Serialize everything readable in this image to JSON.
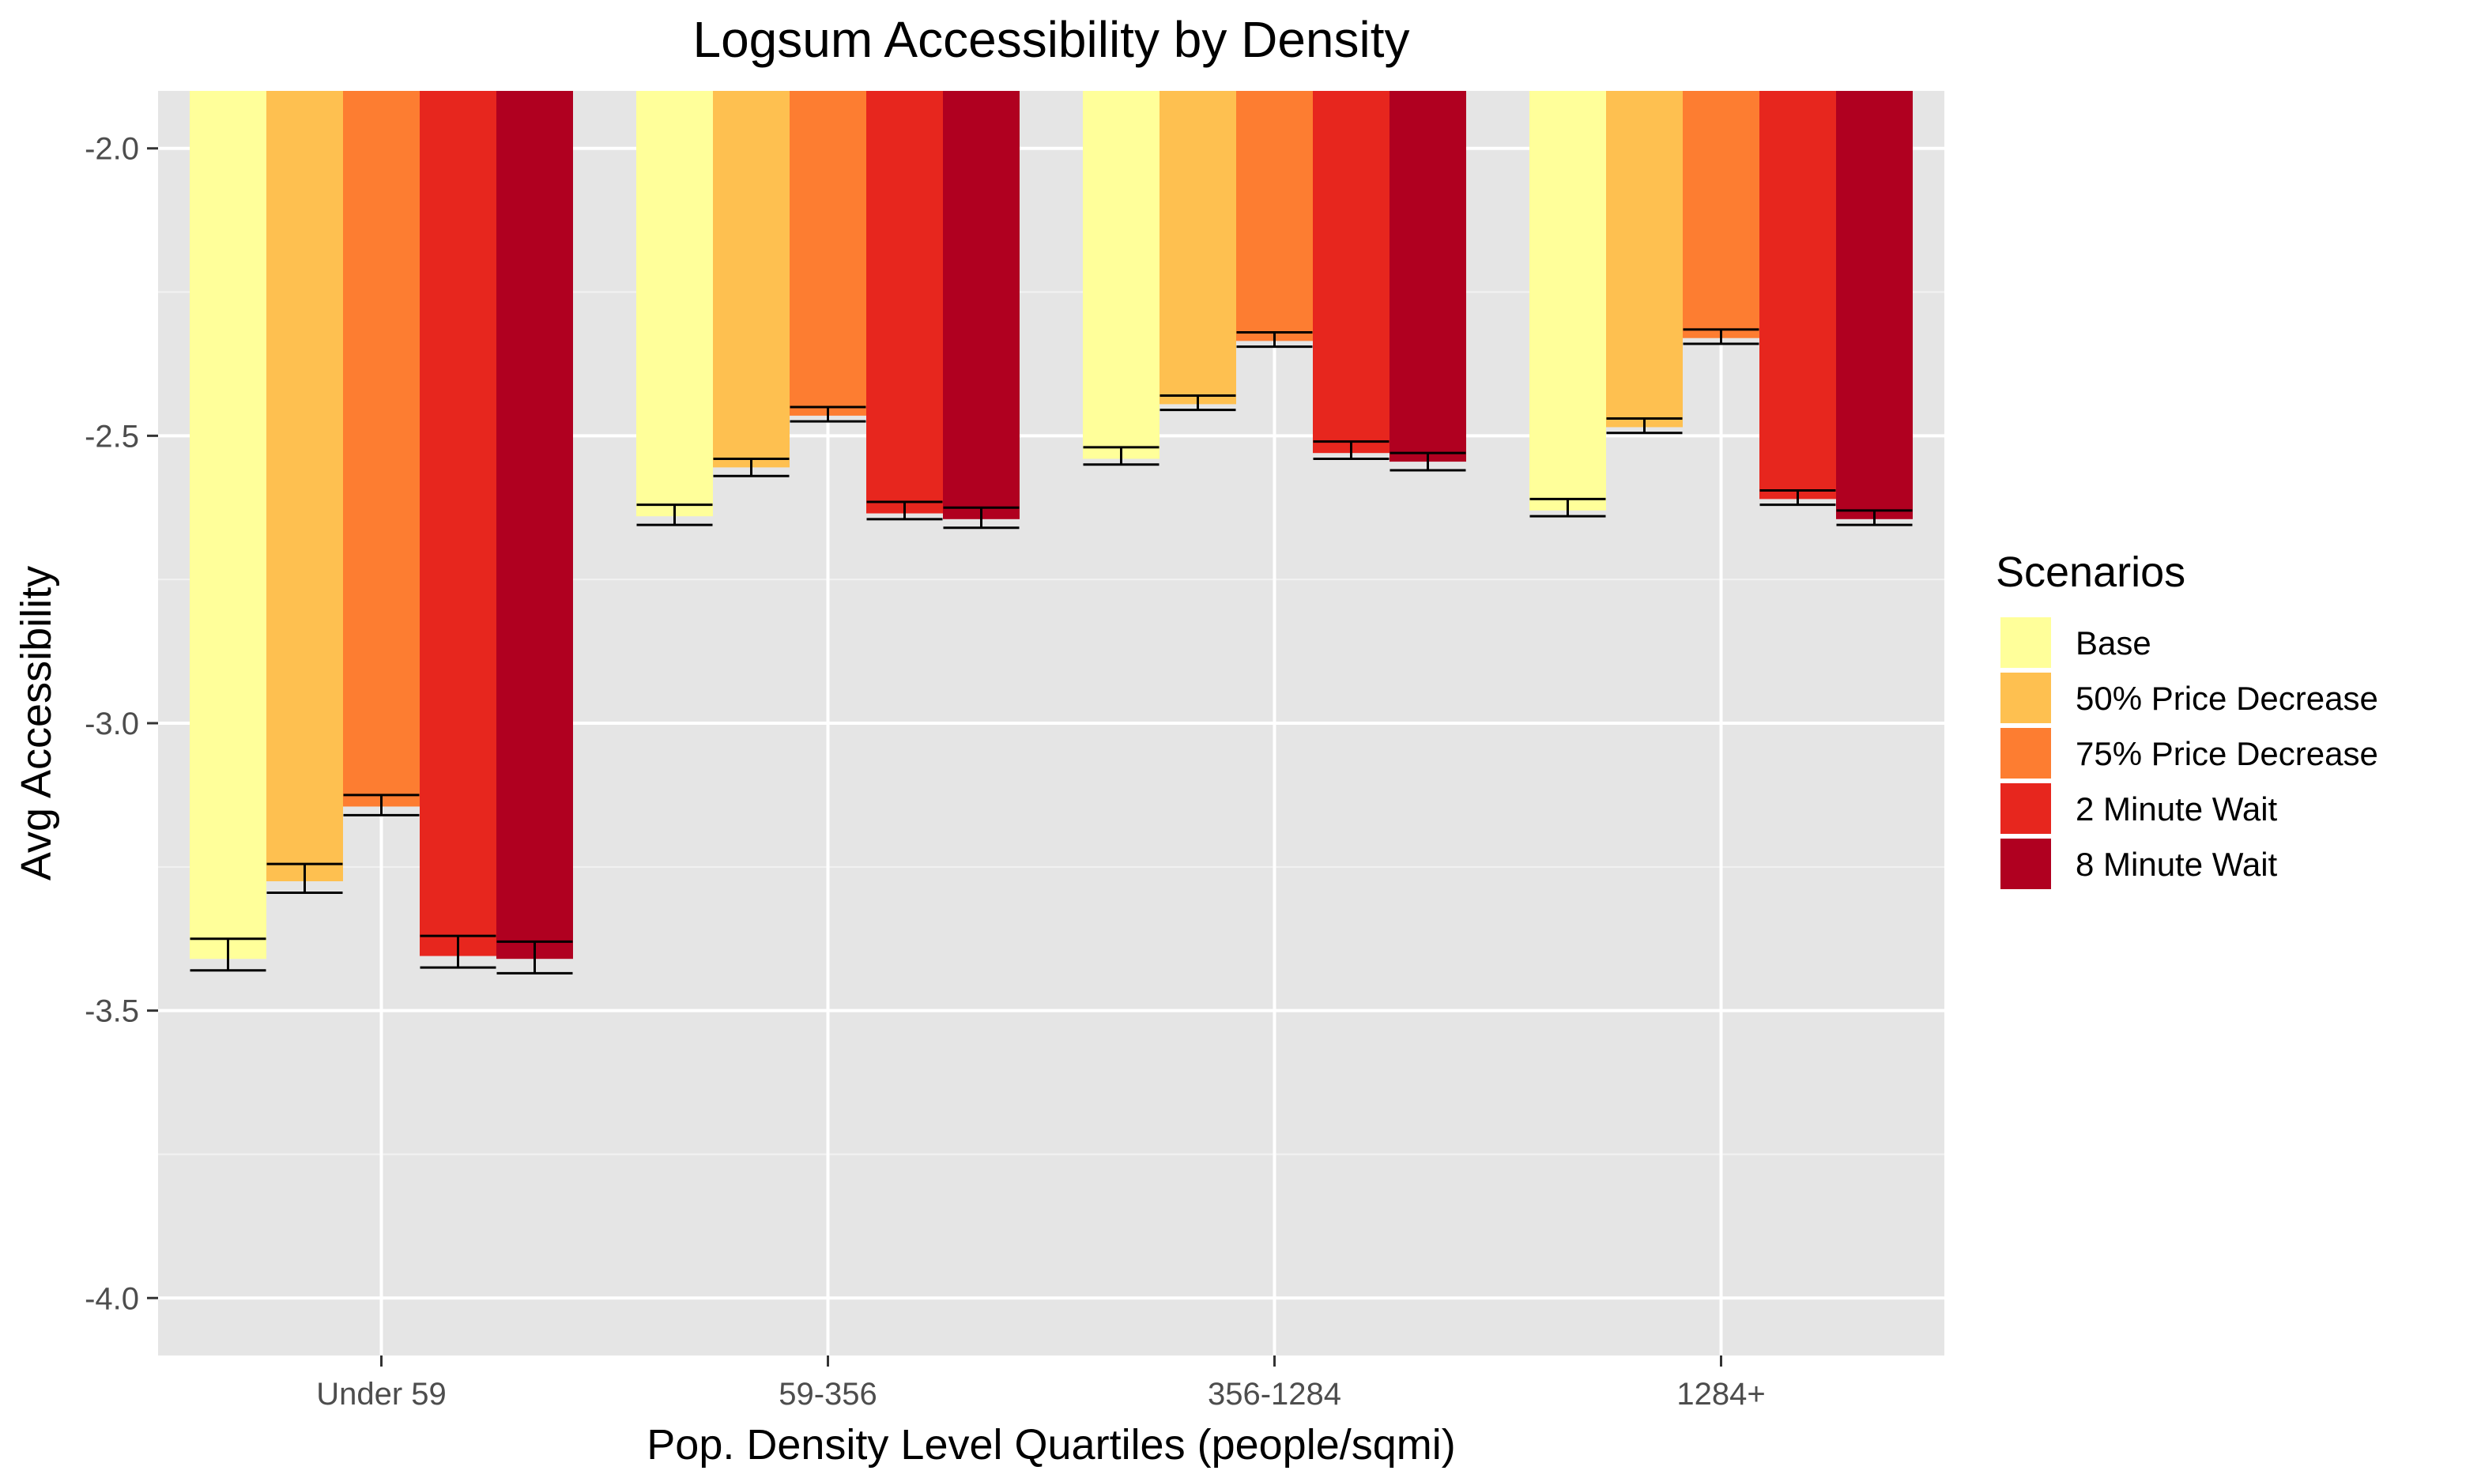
{
  "chart_data": {
    "type": "bar",
    "title": "Logsum Accessibility by Density",
    "xlabel": "Pop. Density Level Quartiles (people/sqmi)",
    "ylabel": "Avg Accessibility",
    "ylim": [
      -4.1,
      -1.9
    ],
    "yticks": [
      -2.0,
      -2.5,
      -3.0,
      -3.5,
      -4.0
    ],
    "ytick_labels": [
      "-2.0",
      "-2.5",
      "-3.0",
      "-3.5",
      "-4.0"
    ],
    "grid": true,
    "legend_title": "Scenarios",
    "legend_position": "right",
    "categories": [
      "Under 59",
      "59-356",
      "356-1284",
      "1284+"
    ],
    "series": [
      {
        "name": "Base",
        "color": "#FFFF9A",
        "values": [
          -3.41,
          -2.64,
          -2.54,
          -2.63
        ],
        "err_low": [
          -3.43,
          -2.655,
          -2.55,
          -2.64
        ],
        "err_high": [
          -3.375,
          -2.62,
          -2.52,
          -2.61
        ]
      },
      {
        "name": "50% Price Decrease",
        "color": "#FEC050",
        "values": [
          -3.275,
          -2.555,
          -2.445,
          -2.485
        ],
        "err_low": [
          -3.295,
          -2.57,
          -2.455,
          -2.495
        ],
        "err_high": [
          -3.245,
          -2.54,
          -2.43,
          -2.47
        ]
      },
      {
        "name": "75% Price Decrease",
        "color": "#FD7D31",
        "values": [
          -3.145,
          -2.465,
          -2.335,
          -2.33
        ],
        "err_low": [
          -3.16,
          -2.475,
          -2.345,
          -2.34
        ],
        "err_high": [
          -3.125,
          -2.45,
          -2.32,
          -2.315
        ]
      },
      {
        "name": "2 Minute Wait",
        "color": "#E7261E",
        "values": [
          -3.405,
          -2.635,
          -2.53,
          -2.61
        ],
        "err_low": [
          -3.425,
          -2.645,
          -2.54,
          -2.62
        ],
        "err_high": [
          -3.37,
          -2.615,
          -2.51,
          -2.595
        ]
      },
      {
        "name": "8 Minute Wait",
        "color": "#B00020",
        "values": [
          -3.41,
          -2.645,
          -2.545,
          -2.645
        ],
        "err_low": [
          -3.435,
          -2.66,
          -2.56,
          -2.655
        ],
        "err_high": [
          -3.38,
          -2.625,
          -2.53,
          -2.63
        ]
      }
    ]
  }
}
